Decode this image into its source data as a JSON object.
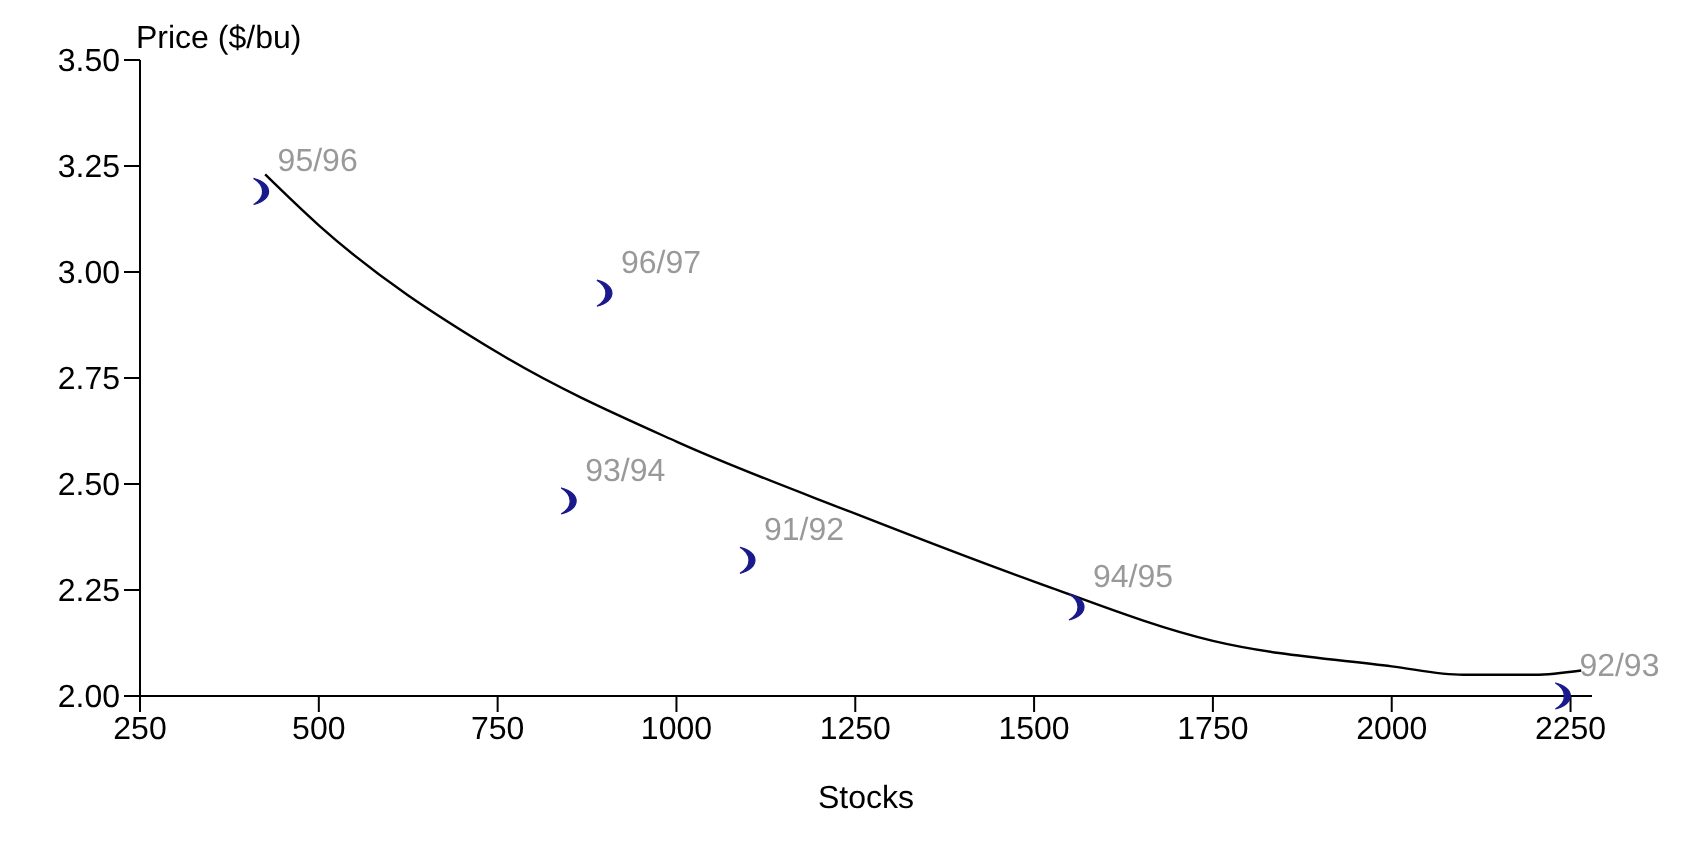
{
  "chart_data": {
    "type": "scatter",
    "xlabel": "Stocks",
    "ylabel": "Price ($/bu)",
    "xlim": [
      250,
      2280
    ],
    "xticks": [
      250,
      500,
      750,
      1000,
      1250,
      1500,
      1750,
      2000,
      2250
    ],
    "ylim": [
      2,
      3.5
    ],
    "yticks": [
      {
        "value": 2,
        "label": "2.00"
      },
      {
        "value": 2.25,
        "label": "2.25"
      },
      {
        "value": 2.5,
        "label": "2.50"
      },
      {
        "value": 2.75,
        "label": "2.75"
      },
      {
        "value": 3,
        "label": "3.00"
      },
      {
        "value": 3.25,
        "label": "3.25"
      },
      {
        "value": 3.5,
        "label": "3.50"
      }
    ],
    "grid": false,
    "legend": false,
    "series": [
      {
        "type": "scatter",
        "color": "#1a1a8c",
        "x": [
          420,
          900,
          850,
          1100,
          1560,
          2240
        ],
        "values": [
          3.19,
          2.95,
          2.46,
          2.32,
          2.21,
          2.0
        ]
      },
      {
        "type": "line",
        "color": "#000000",
        "x": [
          425,
          500,
          750,
          1000,
          1250,
          1500,
          1750,
          2000,
          2100,
          2200,
          2265
        ],
        "values": [
          3.23,
          3.11,
          2.81,
          2.6,
          2.43,
          2.27,
          2.13,
          2.07,
          2.05,
          2.05,
          2.06
        ]
      }
    ],
    "annotations": [
      {
        "text": "95/96",
        "x": 420,
        "y": 3.19
      },
      {
        "text": "96/97",
        "x": 900,
        "y": 2.95
      },
      {
        "text": "93/94",
        "x": 850,
        "y": 2.46
      },
      {
        "text": "91/92",
        "x": 1100,
        "y": 2.32
      },
      {
        "text": "94/95",
        "x": 1560,
        "y": 2.21
      },
      {
        "text": "92/93",
        "x": 2240,
        "y": 2.0
      }
    ]
  }
}
